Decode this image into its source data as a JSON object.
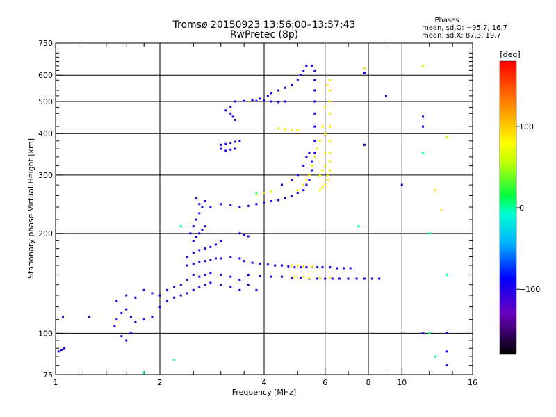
{
  "chart_data": {
    "type": "scatter",
    "title": "Tromsø 20150923 13:56:00–13:57:43",
    "subtitle": "RwPretec (8p)",
    "xlabel": "Frequency [MHz]",
    "ylabel": "Stationary phase Virtual Height [km]",
    "x_scale": "log",
    "y_scale": "log",
    "xlim": [
      1,
      16
    ],
    "ylim": [
      75,
      750
    ],
    "x_ticks": [
      {
        "v": 1,
        "label": "1"
      },
      {
        "v": 2,
        "label": "2"
      },
      {
        "v": 4,
        "label": "4"
      },
      {
        "v": 6,
        "label": "6"
      },
      {
        "v": 8,
        "label": "8"
      },
      {
        "v": 10,
        "label": "10"
      },
      {
        "v": 16,
        "label": "16"
      }
    ],
    "x_minor_ticks": [
      1.2,
      1.4,
      1.6,
      1.8,
      2.5,
      3,
      3.5,
      5,
      7,
      9,
      12,
      14
    ],
    "x_grid": [
      2,
      4,
      6,
      8,
      10
    ],
    "y_ticks": [
      {
        "v": 75,
        "label": "75"
      },
      {
        "v": 100,
        "label": "100"
      },
      {
        "v": 200,
        "label": "200"
      },
      {
        "v": 300,
        "label": "300"
      },
      {
        "v": 400,
        "label": "400"
      },
      {
        "v": 500,
        "label": "500"
      },
      {
        "v": 600,
        "label": "600"
      },
      {
        "v": 750,
        "label": "750"
      }
    ],
    "y_minor_ticks": [
      80,
      85,
      90,
      95,
      110,
      120,
      130,
      140,
      150,
      160,
      170,
      180,
      190,
      220,
      240,
      260,
      280,
      320,
      340,
      360,
      380,
      420,
      440,
      460,
      480,
      520,
      540,
      560,
      580,
      620,
      640,
      660,
      680,
      700,
      720
    ],
    "y_grid": [
      100,
      200,
      300,
      400,
      500,
      600
    ],
    "grid": true,
    "legend": {
      "heading": "Phases",
      "lines": [
        "mean, sd,O: −95.7, 16.7",
        "mean, sd,X:  87.3, 19.7"
      ],
      "placement": "top-right"
    },
    "colorbar": {
      "label": "[deg]",
      "range": [
        -180,
        180
      ],
      "ticks": [
        {
          "v": 100,
          "label": "100"
        },
        {
          "v": 0,
          "label": "0"
        },
        {
          "v": -100,
          "label": "−100"
        }
      ]
    },
    "series": [
      {
        "mode": "O",
        "phase": -95,
        "points": [
          [
            1.02,
            88
          ],
          [
            1.04,
            89
          ],
          [
            1.06,
            90
          ],
          [
            1.05,
            112
          ],
          [
            1.25,
            112
          ],
          [
            1.48,
            105
          ],
          [
            1.5,
            110
          ],
          [
            1.55,
            115
          ],
          [
            1.6,
            118
          ],
          [
            1.65,
            112
          ],
          [
            1.7,
            108
          ],
          [
            1.8,
            110
          ],
          [
            1.9,
            112
          ],
          [
            1.55,
            98
          ],
          [
            1.6,
            95
          ],
          [
            1.65,
            100
          ],
          [
            1.5,
            125
          ],
          [
            1.6,
            130
          ],
          [
            1.7,
            128
          ],
          [
            1.8,
            135
          ],
          [
            1.9,
            132
          ],
          [
            2.0,
            130
          ],
          [
            2.1,
            135
          ],
          [
            2.2,
            138
          ],
          [
            2.3,
            140
          ],
          [
            2.4,
            145
          ],
          [
            2.5,
            150
          ],
          [
            2.6,
            148
          ],
          [
            2.7,
            150
          ],
          [
            2.8,
            152
          ],
          [
            3.0,
            150
          ],
          [
            3.2,
            148
          ],
          [
            3.4,
            145
          ],
          [
            3.6,
            140
          ],
          [
            3.8,
            135
          ],
          [
            2.0,
            120
          ],
          [
            2.1,
            125
          ],
          [
            2.2,
            128
          ],
          [
            2.3,
            130
          ],
          [
            2.4,
            132
          ],
          [
            2.5,
            135
          ],
          [
            2.6,
            138
          ],
          [
            2.7,
            140
          ],
          [
            2.8,
            142
          ],
          [
            3.0,
            140
          ],
          [
            3.2,
            138
          ],
          [
            3.4,
            135
          ],
          [
            2.4,
            170
          ],
          [
            2.5,
            175
          ],
          [
            2.6,
            178
          ],
          [
            2.7,
            180
          ],
          [
            2.8,
            182
          ],
          [
            2.9,
            185
          ],
          [
            3.0,
            190
          ],
          [
            2.4,
            160
          ],
          [
            2.5,
            162
          ],
          [
            2.6,
            164
          ],
          [
            2.7,
            165
          ],
          [
            2.8,
            166
          ],
          [
            2.9,
            168
          ],
          [
            3.0,
            168
          ],
          [
            3.2,
            170
          ],
          [
            3.4,
            168
          ],
          [
            2.45,
            200
          ],
          [
            2.5,
            210
          ],
          [
            2.55,
            220
          ],
          [
            2.6,
            230
          ],
          [
            2.65,
            240
          ],
          [
            2.7,
            250
          ],
          [
            2.55,
            255
          ],
          [
            2.6,
            245
          ],
          [
            2.5,
            190
          ],
          [
            2.55,
            195
          ],
          [
            2.6,
            200
          ],
          [
            2.65,
            205
          ],
          [
            2.7,
            210
          ],
          [
            2.8,
            240
          ],
          [
            3.0,
            245
          ],
          [
            3.2,
            243
          ],
          [
            3.4,
            240
          ],
          [
            3.6,
            242
          ],
          [
            3.8,
            245
          ],
          [
            4.0,
            248
          ],
          [
            4.2,
            250
          ],
          [
            4.4,
            252
          ],
          [
            4.6,
            255
          ],
          [
            4.8,
            260
          ],
          [
            5.0,
            265
          ],
          [
            5.2,
            270
          ],
          [
            5.3,
            280
          ],
          [
            5.4,
            290
          ],
          [
            5.5,
            310
          ],
          [
            5.5,
            330
          ],
          [
            5.6,
            350
          ],
          [
            5.6,
            380
          ],
          [
            5.6,
            420
          ],
          [
            5.6,
            460
          ],
          [
            5.6,
            500
          ],
          [
            5.6,
            540
          ],
          [
            5.6,
            580
          ],
          [
            5.6,
            620
          ],
          [
            5.5,
            640
          ],
          [
            5.3,
            640
          ],
          [
            5.2,
            620
          ],
          [
            5.1,
            600
          ],
          [
            5.0,
            580
          ],
          [
            4.8,
            560
          ],
          [
            4.6,
            550
          ],
          [
            4.4,
            540
          ],
          [
            4.2,
            530
          ],
          [
            4.1,
            520
          ],
          [
            3.9,
            510
          ],
          [
            3.7,
            505
          ],
          [
            3.5,
            502
          ],
          [
            3.3,
            500
          ],
          [
            3.8,
            502
          ],
          [
            4.0,
            503
          ],
          [
            4.2,
            500
          ],
          [
            4.4,
            498
          ],
          [
            4.6,
            500
          ],
          [
            5.4,
            350
          ],
          [
            5.3,
            340
          ],
          [
            5.2,
            320
          ],
          [
            5.0,
            300
          ],
          [
            4.8,
            290
          ],
          [
            4.5,
            280
          ],
          [
            3.2,
            460
          ],
          [
            3.25,
            450
          ],
          [
            3.3,
            440
          ],
          [
            3.1,
            470
          ],
          [
            3.2,
            480
          ],
          [
            3.0,
            370
          ],
          [
            3.1,
            372
          ],
          [
            3.2,
            375
          ],
          [
            3.3,
            378
          ],
          [
            3.4,
            380
          ],
          [
            3.0,
            360
          ],
          [
            3.1,
            355
          ],
          [
            3.2,
            358
          ],
          [
            3.3,
            360
          ],
          [
            3.4,
            200
          ],
          [
            3.5,
            198
          ],
          [
            3.6,
            196
          ],
          [
            3.5,
            165
          ],
          [
            3.7,
            163
          ],
          [
            3.9,
            162
          ],
          [
            4.1,
            161
          ],
          [
            4.3,
            160
          ],
          [
            4.5,
            160
          ],
          [
            4.7,
            159
          ],
          [
            4.9,
            158
          ],
          [
            5.1,
            158
          ],
          [
            5.3,
            158
          ],
          [
            5.5,
            158
          ],
          [
            5.7,
            158
          ],
          [
            5.9,
            158
          ],
          [
            6.2,
            158
          ],
          [
            6.5,
            157
          ],
          [
            6.8,
            157
          ],
          [
            7.1,
            157
          ],
          [
            3.6,
            150
          ],
          [
            3.9,
            149
          ],
          [
            4.2,
            148
          ],
          [
            4.5,
            148
          ],
          [
            4.8,
            147
          ],
          [
            5.1,
            147
          ],
          [
            5.4,
            146
          ],
          [
            5.7,
            146
          ],
          [
            6.0,
            146
          ],
          [
            6.3,
            146
          ],
          [
            6.6,
            146
          ],
          [
            7.0,
            146
          ],
          [
            7.4,
            146
          ],
          [
            7.8,
            146
          ],
          [
            8.2,
            146
          ],
          [
            8.6,
            146
          ],
          [
            7.8,
            610
          ],
          [
            9.0,
            520
          ],
          [
            11.5,
            450
          ],
          [
            11.5,
            420
          ],
          [
            7.8,
            370
          ],
          [
            10.0,
            280
          ],
          [
            13.5,
            100
          ],
          [
            11.5,
            100
          ],
          [
            13.5,
            88
          ],
          [
            13.5,
            80
          ]
        ]
      },
      {
        "mode": "X",
        "phase": 87,
        "points": [
          [
            5.8,
            270
          ],
          [
            5.9,
            275
          ],
          [
            6.0,
            280
          ],
          [
            6.1,
            290
          ],
          [
            6.1,
            300
          ],
          [
            6.2,
            310
          ],
          [
            6.2,
            330
          ],
          [
            6.2,
            350
          ],
          [
            6.2,
            380
          ],
          [
            6.2,
            420
          ],
          [
            6.2,
            460
          ],
          [
            6.2,
            500
          ],
          [
            6.2,
            540
          ],
          [
            6.2,
            580
          ],
          [
            6.1,
            560
          ],
          [
            6.0,
            480
          ],
          [
            5.9,
            420
          ],
          [
            5.8,
            380
          ],
          [
            5.7,
            360
          ],
          [
            5.6,
            340
          ],
          [
            5.5,
            320
          ],
          [
            5.4,
            300
          ],
          [
            5.3,
            290
          ],
          [
            5.2,
            280
          ],
          [
            5.0,
            270
          ],
          [
            5.8,
            300
          ],
          [
            5.9,
            310
          ],
          [
            6.0,
            320
          ],
          [
            6.0,
            350
          ],
          [
            6.0,
            400
          ],
          [
            4.4,
            415
          ],
          [
            4.6,
            412
          ],
          [
            4.8,
            410
          ],
          [
            5.0,
            410
          ],
          [
            4.8,
            160
          ],
          [
            5.0,
            160
          ],
          [
            5.2,
            159
          ],
          [
            5.5,
            159
          ],
          [
            4.9,
            148
          ],
          [
            5.2,
            148
          ],
          [
            5.4,
            147
          ],
          [
            5.8,
            147
          ],
          [
            6.2,
            147
          ],
          [
            3.8,
            262
          ],
          [
            4.0,
            265
          ],
          [
            4.2,
            268
          ],
          [
            7.8,
            630
          ],
          [
            11.5,
            640
          ],
          [
            13.5,
            390
          ],
          [
            12.5,
            270
          ],
          [
            13.0,
            235
          ]
        ]
      },
      {
        "mode": "other",
        "phase": 0,
        "points": [
          [
            1.8,
            76
          ],
          [
            2.2,
            83
          ],
          [
            3.8,
            265
          ],
          [
            2.3,
            210
          ],
          [
            13.5,
            150
          ],
          [
            7.5,
            210
          ],
          [
            12.0,
            100
          ],
          [
            12.5,
            85
          ],
          [
            11.5,
            350
          ],
          [
            12.0,
            200
          ]
        ]
      }
    ]
  }
}
